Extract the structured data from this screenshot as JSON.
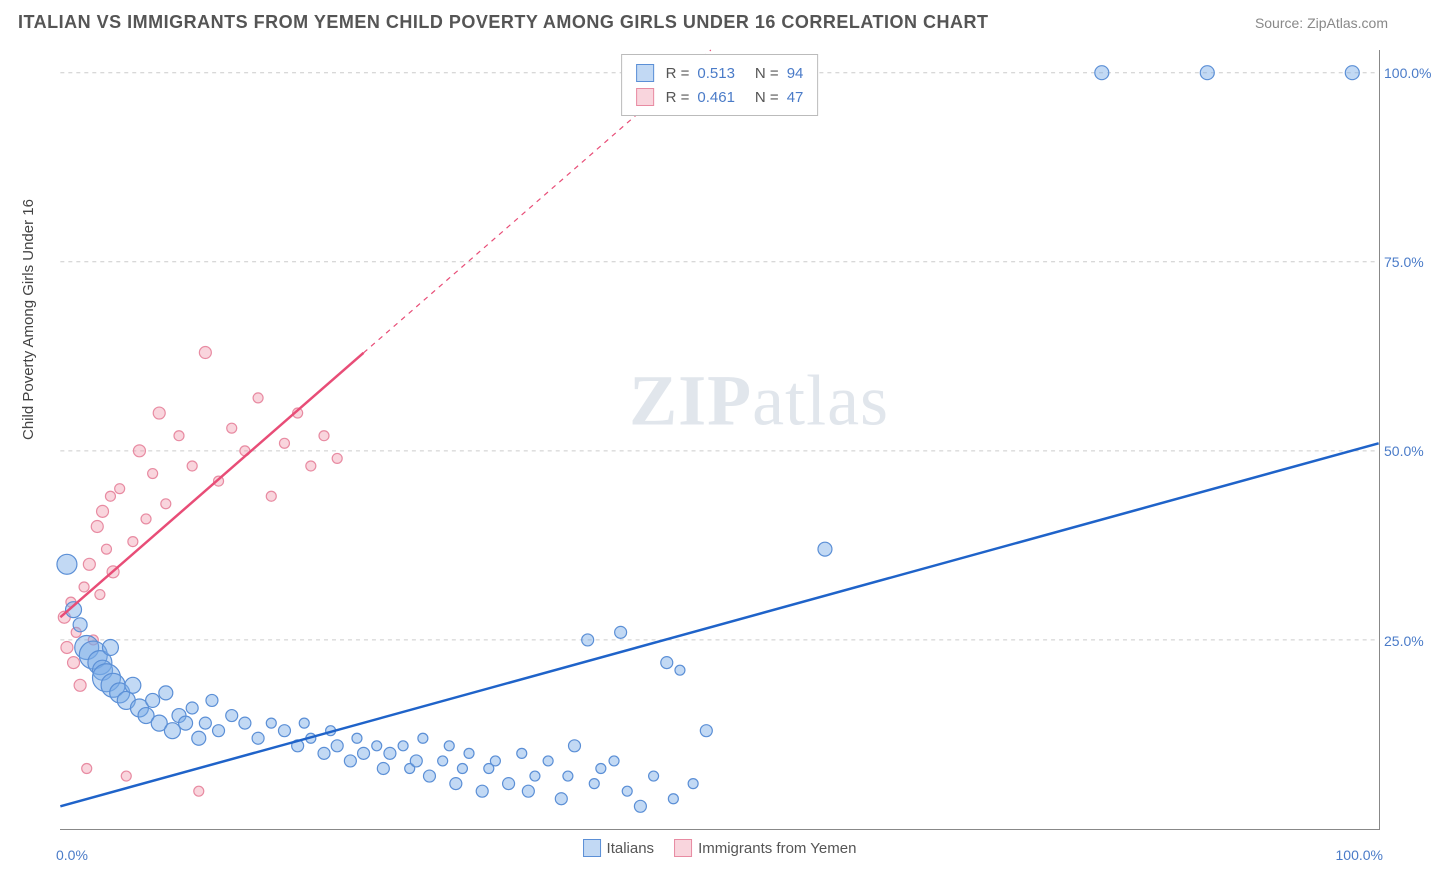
{
  "header": {
    "title": "ITALIAN VS IMMIGRANTS FROM YEMEN CHILD POVERTY AMONG GIRLS UNDER 16 CORRELATION CHART",
    "source_prefix": "Source: ",
    "source_name": "ZipAtlas.com"
  },
  "axes": {
    "y_label": "Child Poverty Among Girls Under 16",
    "x_min": 0,
    "x_max": 100,
    "y_min": 0,
    "y_max": 103,
    "y_ticks": [
      25,
      50,
      75,
      100
    ],
    "y_tick_labels": [
      "25.0%",
      "50.0%",
      "75.0%",
      "100.0%"
    ],
    "x_tick_low": "0.0%",
    "x_tick_high": "100.0%"
  },
  "colors": {
    "series_a_fill": "rgba(120,170,230,0.45)",
    "series_a_stroke": "#5b8fd6",
    "series_a_line": "#1f63c9",
    "series_b_fill": "rgba(240,150,170,0.4)",
    "series_b_stroke": "#e88ba2",
    "series_b_line": "#e84d77",
    "grid": "#cccccc",
    "axis_text": "#4a7bc8"
  },
  "legend_top": {
    "rows": [
      {
        "swatch_fill": "rgba(120,170,230,0.45)",
        "swatch_stroke": "#5b8fd6",
        "r": "0.513",
        "n": "94"
      },
      {
        "swatch_fill": "rgba(240,150,170,0.4)",
        "swatch_stroke": "#e88ba2",
        "r": "0.461",
        "n": "47"
      }
    ],
    "labels": {
      "r": "R =",
      "n": "N ="
    }
  },
  "legend_bottom": {
    "items": [
      {
        "label": "Italians",
        "fill": "rgba(120,170,230,0.45)",
        "stroke": "#5b8fd6"
      },
      {
        "label": "Immigrants from Yemen",
        "fill": "rgba(240,150,170,0.4)",
        "stroke": "#e88ba2"
      }
    ]
  },
  "watermark": {
    "bold": "ZIP",
    "rest": "atlas"
  },
  "trend_lines": {
    "a": {
      "x1": 0,
      "y1": 3,
      "x2": 100,
      "y2": 51,
      "dash_from_x": null
    },
    "b": {
      "x1": 0,
      "y1": 28,
      "x2": 100,
      "y2": 180,
      "dash_from_x": 23
    }
  },
  "series_a": {
    "points": [
      {
        "x": 0.5,
        "y": 35,
        "r": 10
      },
      {
        "x": 1,
        "y": 29,
        "r": 8
      },
      {
        "x": 1.5,
        "y": 27,
        "r": 7
      },
      {
        "x": 2,
        "y": 24,
        "r": 12
      },
      {
        "x": 2.5,
        "y": 23,
        "r": 14
      },
      {
        "x": 3,
        "y": 22,
        "r": 12
      },
      {
        "x": 3.2,
        "y": 21,
        "r": 10
      },
      {
        "x": 3.5,
        "y": 20,
        "r": 14
      },
      {
        "x": 3.8,
        "y": 24,
        "r": 8
      },
      {
        "x": 4,
        "y": 19,
        "r": 12
      },
      {
        "x": 4.5,
        "y": 18,
        "r": 10
      },
      {
        "x": 5,
        "y": 17,
        "r": 9
      },
      {
        "x": 5.5,
        "y": 19,
        "r": 8
      },
      {
        "x": 6,
        "y": 16,
        "r": 9
      },
      {
        "x": 6.5,
        "y": 15,
        "r": 8
      },
      {
        "x": 7,
        "y": 17,
        "r": 7
      },
      {
        "x": 7.5,
        "y": 14,
        "r": 8
      },
      {
        "x": 8,
        "y": 18,
        "r": 7
      },
      {
        "x": 8.5,
        "y": 13,
        "r": 8
      },
      {
        "x": 9,
        "y": 15,
        "r": 7
      },
      {
        "x": 9.5,
        "y": 14,
        "r": 7
      },
      {
        "x": 10,
        "y": 16,
        "r": 6
      },
      {
        "x": 10.5,
        "y": 12,
        "r": 7
      },
      {
        "x": 11,
        "y": 14,
        "r": 6
      },
      {
        "x": 11.5,
        "y": 17,
        "r": 6
      },
      {
        "x": 12,
        "y": 13,
        "r": 6
      },
      {
        "x": 13,
        "y": 15,
        "r": 6
      },
      {
        "x": 14,
        "y": 14,
        "r": 6
      },
      {
        "x": 15,
        "y": 12,
        "r": 6
      },
      {
        "x": 16,
        "y": 14,
        "r": 5
      },
      {
        "x": 17,
        "y": 13,
        "r": 6
      },
      {
        "x": 18,
        "y": 11,
        "r": 6
      },
      {
        "x": 18.5,
        "y": 14,
        "r": 5
      },
      {
        "x": 19,
        "y": 12,
        "r": 5
      },
      {
        "x": 20,
        "y": 10,
        "r": 6
      },
      {
        "x": 20.5,
        "y": 13,
        "r": 5
      },
      {
        "x": 21,
        "y": 11,
        "r": 6
      },
      {
        "x": 22,
        "y": 9,
        "r": 6
      },
      {
        "x": 22.5,
        "y": 12,
        "r": 5
      },
      {
        "x": 23,
        "y": 10,
        "r": 6
      },
      {
        "x": 24,
        "y": 11,
        "r": 5
      },
      {
        "x": 24.5,
        "y": 8,
        "r": 6
      },
      {
        "x": 25,
        "y": 10,
        "r": 6
      },
      {
        "x": 26,
        "y": 11,
        "r": 5
      },
      {
        "x": 26.5,
        "y": 8,
        "r": 5
      },
      {
        "x": 27,
        "y": 9,
        "r": 6
      },
      {
        "x": 27.5,
        "y": 12,
        "r": 5
      },
      {
        "x": 28,
        "y": 7,
        "r": 6
      },
      {
        "x": 29,
        "y": 9,
        "r": 5
      },
      {
        "x": 29.5,
        "y": 11,
        "r": 5
      },
      {
        "x": 30,
        "y": 6,
        "r": 6
      },
      {
        "x": 30.5,
        "y": 8,
        "r": 5
      },
      {
        "x": 31,
        "y": 10,
        "r": 5
      },
      {
        "x": 32,
        "y": 5,
        "r": 6
      },
      {
        "x": 32.5,
        "y": 8,
        "r": 5
      },
      {
        "x": 33,
        "y": 9,
        "r": 5
      },
      {
        "x": 34,
        "y": 6,
        "r": 6
      },
      {
        "x": 35,
        "y": 10,
        "r": 5
      },
      {
        "x": 35.5,
        "y": 5,
        "r": 6
      },
      {
        "x": 36,
        "y": 7,
        "r": 5
      },
      {
        "x": 37,
        "y": 9,
        "r": 5
      },
      {
        "x": 38,
        "y": 4,
        "r": 6
      },
      {
        "x": 38.5,
        "y": 7,
        "r": 5
      },
      {
        "x": 39,
        "y": 11,
        "r": 6
      },
      {
        "x": 40,
        "y": 25,
        "r": 6
      },
      {
        "x": 40.5,
        "y": 6,
        "r": 5
      },
      {
        "x": 41,
        "y": 8,
        "r": 5
      },
      {
        "x": 42,
        "y": 9,
        "r": 5
      },
      {
        "x": 42.5,
        "y": 26,
        "r": 6
      },
      {
        "x": 43,
        "y": 5,
        "r": 5
      },
      {
        "x": 44,
        "y": 3,
        "r": 6
      },
      {
        "x": 45,
        "y": 7,
        "r": 5
      },
      {
        "x": 46,
        "y": 22,
        "r": 6
      },
      {
        "x": 46.5,
        "y": 4,
        "r": 5
      },
      {
        "x": 47,
        "y": 21,
        "r": 5
      },
      {
        "x": 48,
        "y": 6,
        "r": 5
      },
      {
        "x": 49,
        "y": 13,
        "r": 6
      },
      {
        "x": 58,
        "y": 37,
        "r": 7
      },
      {
        "x": 79,
        "y": 100,
        "r": 7
      },
      {
        "x": 87,
        "y": 100,
        "r": 7
      },
      {
        "x": 98,
        "y": 100,
        "r": 7
      }
    ]
  },
  "series_b": {
    "points": [
      {
        "x": 0.3,
        "y": 28,
        "r": 6
      },
      {
        "x": 0.5,
        "y": 24,
        "r": 6
      },
      {
        "x": 0.8,
        "y": 30,
        "r": 5
      },
      {
        "x": 1,
        "y": 22,
        "r": 6
      },
      {
        "x": 1.2,
        "y": 26,
        "r": 5
      },
      {
        "x": 1.5,
        "y": 19,
        "r": 6
      },
      {
        "x": 1.8,
        "y": 32,
        "r": 5
      },
      {
        "x": 2,
        "y": 8,
        "r": 5
      },
      {
        "x": 2.2,
        "y": 35,
        "r": 6
      },
      {
        "x": 2.5,
        "y": 25,
        "r": 5
      },
      {
        "x": 2.8,
        "y": 40,
        "r": 6
      },
      {
        "x": 3,
        "y": 31,
        "r": 5
      },
      {
        "x": 3.2,
        "y": 42,
        "r": 6
      },
      {
        "x": 3.5,
        "y": 37,
        "r": 5
      },
      {
        "x": 3.8,
        "y": 44,
        "r": 5
      },
      {
        "x": 4,
        "y": 34,
        "r": 6
      },
      {
        "x": 4.5,
        "y": 45,
        "r": 5
      },
      {
        "x": 5,
        "y": 7,
        "r": 5
      },
      {
        "x": 5.5,
        "y": 38,
        "r": 5
      },
      {
        "x": 6,
        "y": 50,
        "r": 6
      },
      {
        "x": 6.5,
        "y": 41,
        "r": 5
      },
      {
        "x": 7,
        "y": 47,
        "r": 5
      },
      {
        "x": 7.5,
        "y": 55,
        "r": 6
      },
      {
        "x": 8,
        "y": 43,
        "r": 5
      },
      {
        "x": 9,
        "y": 52,
        "r": 5
      },
      {
        "x": 10,
        "y": 48,
        "r": 5
      },
      {
        "x": 10.5,
        "y": 5,
        "r": 5
      },
      {
        "x": 11,
        "y": 63,
        "r": 6
      },
      {
        "x": 12,
        "y": 46,
        "r": 5
      },
      {
        "x": 13,
        "y": 53,
        "r": 5
      },
      {
        "x": 14,
        "y": 50,
        "r": 5
      },
      {
        "x": 15,
        "y": 57,
        "r": 5
      },
      {
        "x": 16,
        "y": 44,
        "r": 5
      },
      {
        "x": 17,
        "y": 51,
        "r": 5
      },
      {
        "x": 18,
        "y": 55,
        "r": 5
      },
      {
        "x": 19,
        "y": 48,
        "r": 5
      },
      {
        "x": 20,
        "y": 52,
        "r": 5
      },
      {
        "x": 21,
        "y": 49,
        "r": 5
      }
    ]
  }
}
